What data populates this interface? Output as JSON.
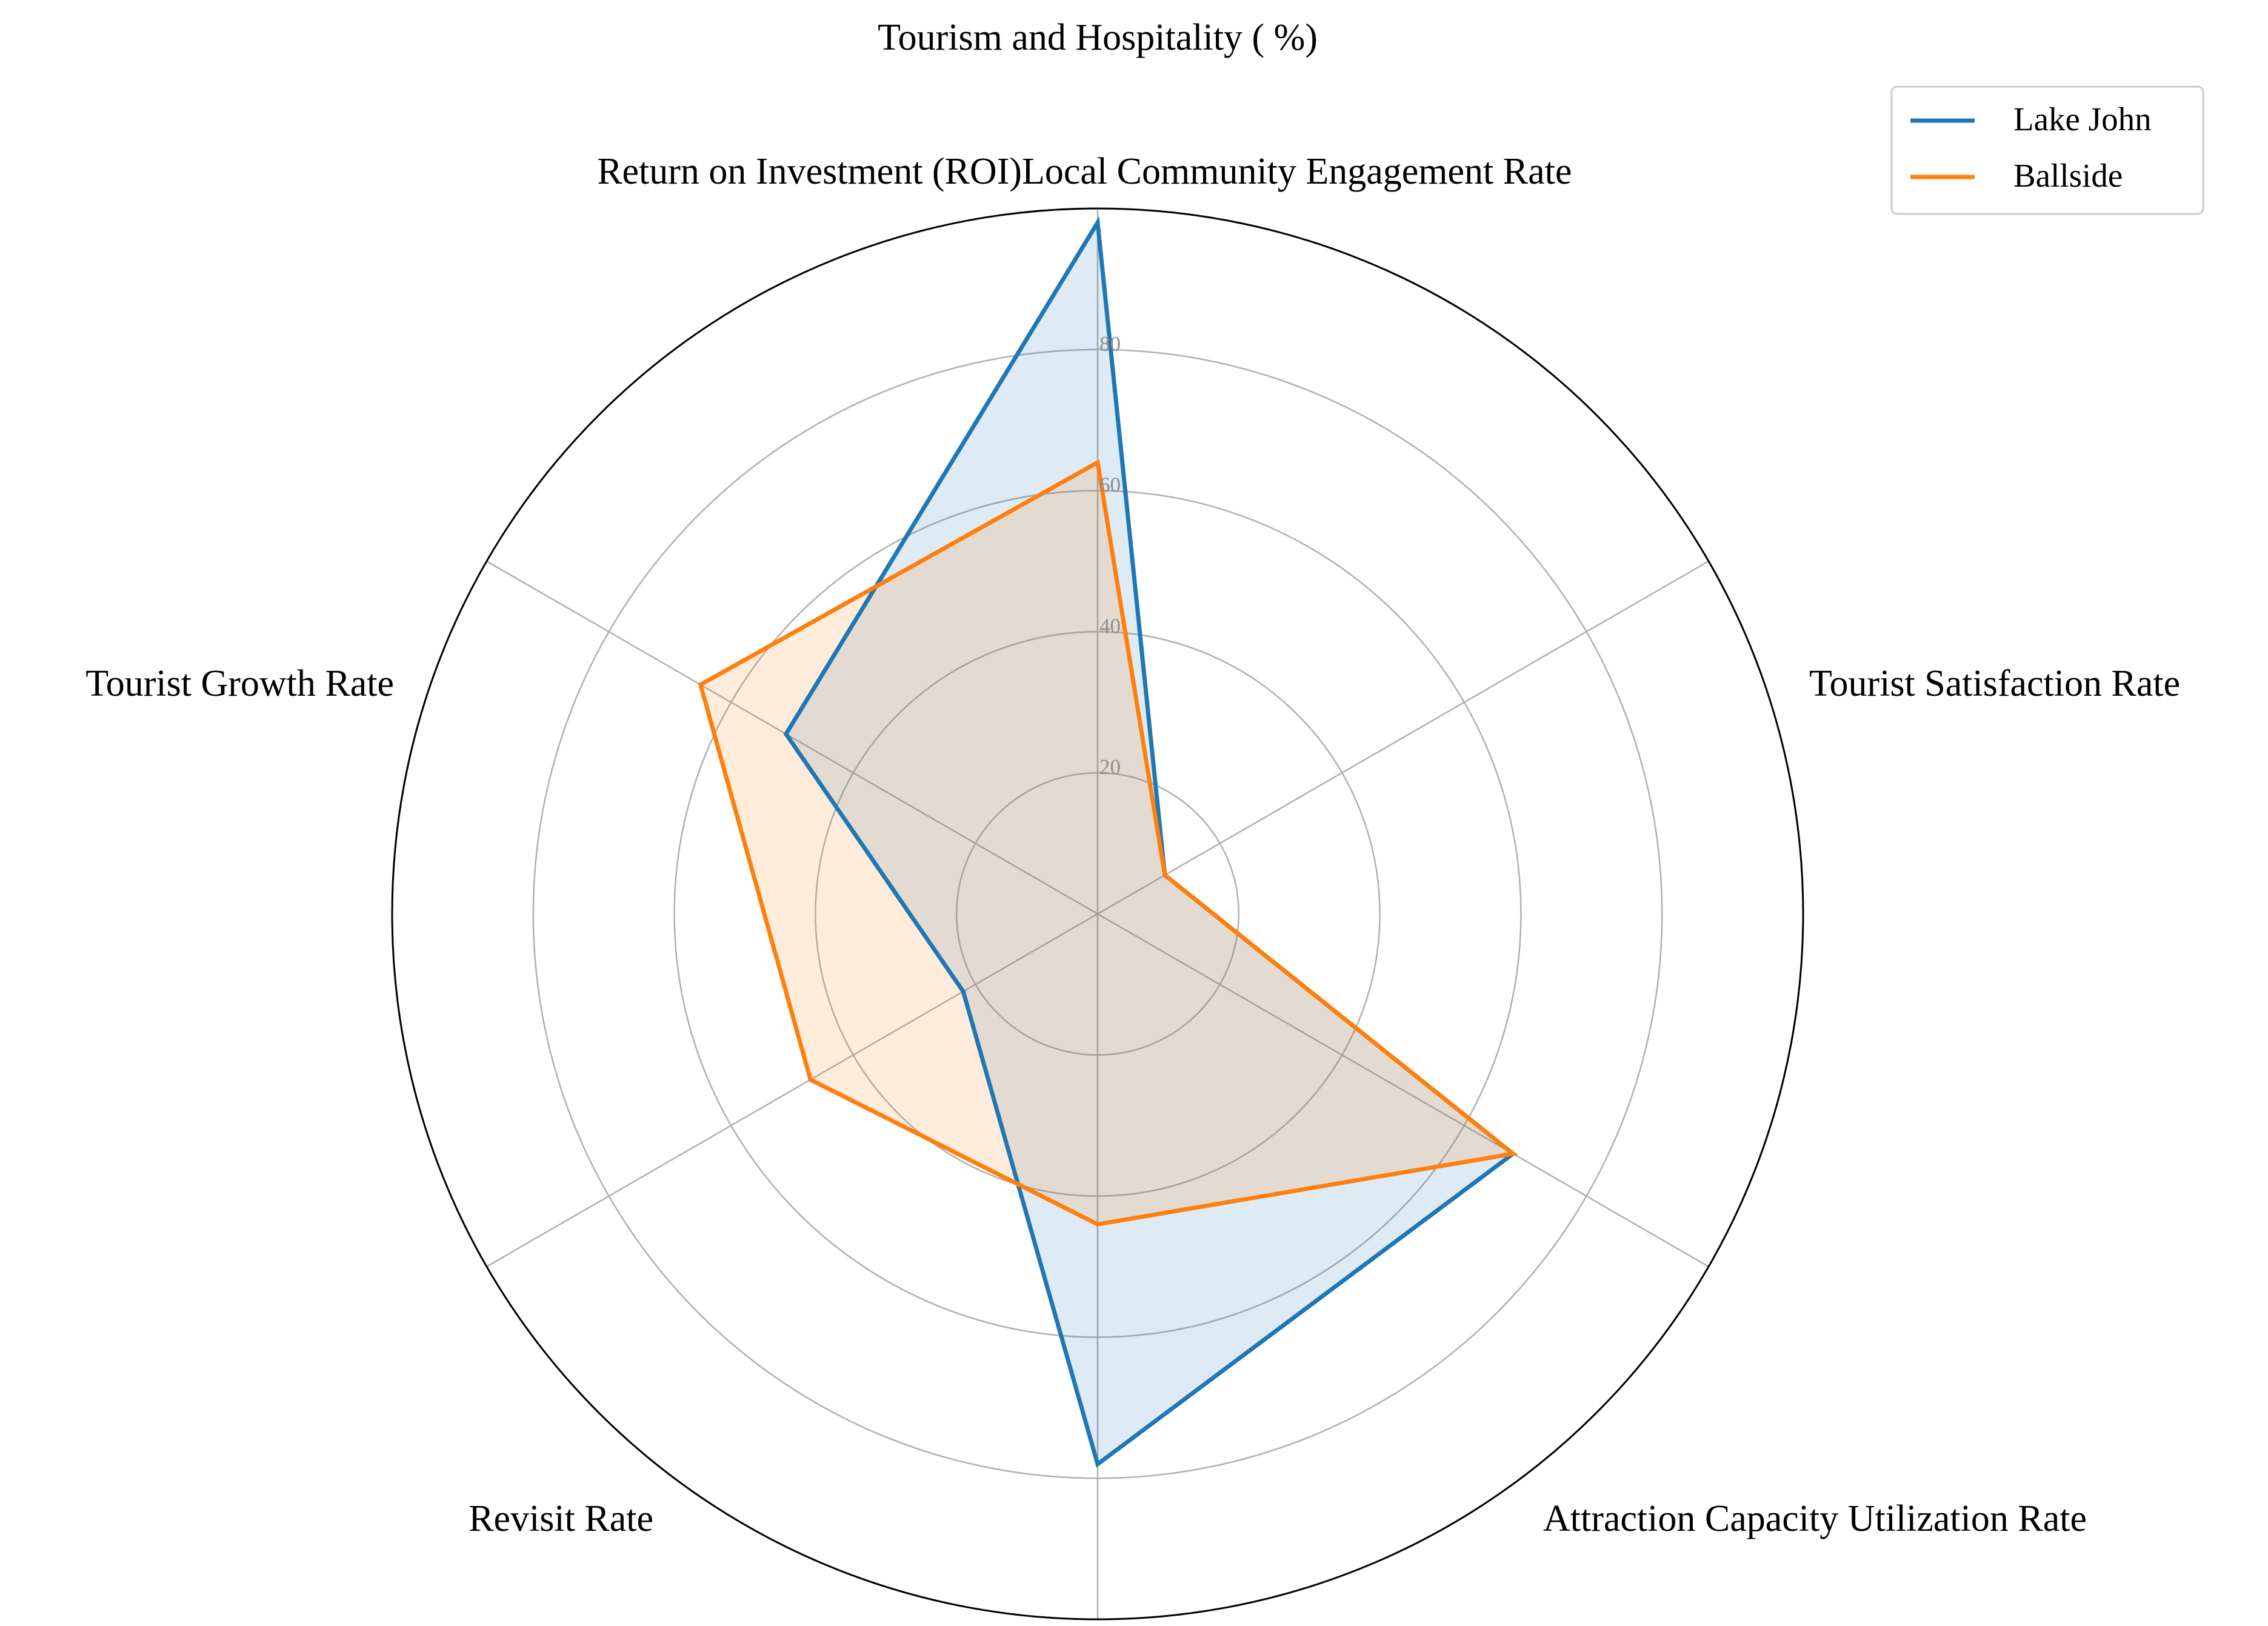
{
  "chart_data": {
    "type": "radar",
    "title": "Tourism and Hospitality ( %)",
    "axes": [
      "Return on Investment (ROI)",
      "Local Community Engagement Rate",
      "Tourist Satisfaction Rate",
      "Attraction Capacity Utilization Rate",
      "Revisit Rate",
      "Tourist Growth Rate"
    ],
    "rlim": [
      0,
      100
    ],
    "rticks": [
      20,
      40,
      60,
      80
    ],
    "rtick_labels": [
      "20",
      "40",
      "60",
      "80"
    ],
    "grid": true,
    "legend_position": "top-right",
    "series": [
      {
        "name": "Lake John",
        "color": "#1f77b4",
        "values": [
          98,
          11,
          68,
          78,
          22,
          51
        ]
      },
      {
        "name": "Ballside",
        "color": "#ff7f0e",
        "values": [
          64,
          11,
          68,
          44,
          47,
          65
        ]
      }
    ]
  }
}
